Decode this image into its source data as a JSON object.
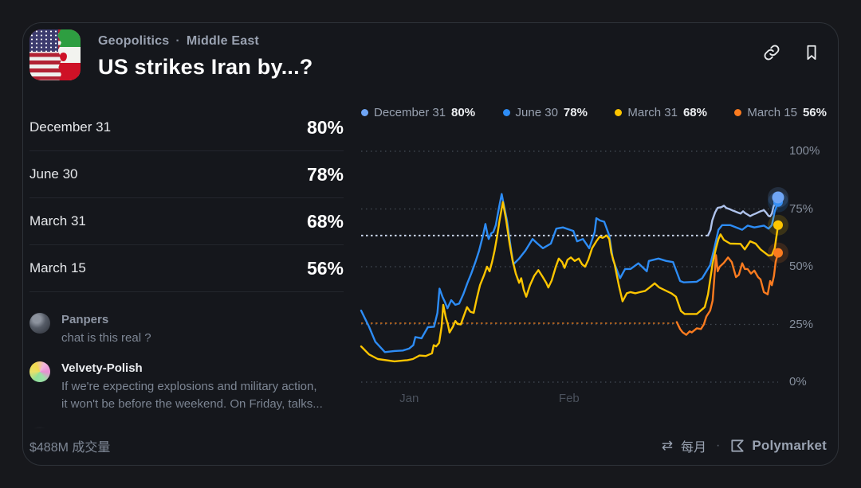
{
  "card": {
    "breadcrumb": {
      "category": "Geopolitics",
      "separator": "·",
      "region": "Middle East"
    },
    "title": "US strikes Iran by...?",
    "outcomes": [
      {
        "label": "December 31",
        "value": "80%",
        "color": "#6fa5f4"
      },
      {
        "label": "June 30",
        "value": "78%",
        "color": "#2d8cf5"
      },
      {
        "label": "March 31",
        "value": "68%",
        "color": "#fdc500"
      },
      {
        "label": "March 15",
        "value": "56%",
        "color": "#fb7b1f"
      }
    ],
    "comments": [
      {
        "name": "Panpers",
        "text": "chat is this real ?"
      },
      {
        "name": "Velvety-Polish",
        "text": "If we're expecting explosions and military action, it won't be before the weekend. On Friday, talks..."
      }
    ],
    "footer": {
      "volume": "$488M 成交量",
      "swap_glyph": "⇄",
      "interval": "每月",
      "separator": "·",
      "brand": "Polymarket"
    },
    "icons": {
      "link": "link-icon",
      "bookmark": "bookmark-icon",
      "swap": "swap-icon",
      "brand": "polymarket-logo"
    }
  },
  "chart_data": {
    "type": "line",
    "ylim": [
      0,
      100
    ],
    "grid": "dotted-horizontal",
    "legend_position": "top",
    "yticks": [
      {
        "label": "100%",
        "value": 100
      },
      {
        "label": "75%",
        "value": 75
      },
      {
        "label": "50%",
        "value": 50
      },
      {
        "label": "25%",
        "value": 25
      },
      {
        "label": "0%",
        "value": 0
      }
    ],
    "xticks": [
      {
        "label": "Jan",
        "pos": 11.5
      },
      {
        "label": "Feb",
        "pos": 49.7
      }
    ],
    "series": [
      {
        "name": "December 31",
        "current_pct": 80,
        "color": "#6fa5f4",
        "line_color": "#afc3ec",
        "pre_line": {
          "value": 63.5,
          "until": 83.2,
          "color": "#cbd7ef"
        },
        "points": [
          [
            83.2,
            63.5
          ],
          [
            83.8,
            66
          ],
          [
            84.2,
            70
          ],
          [
            84.9,
            73.5
          ],
          [
            85.5,
            75.5
          ],
          [
            86.4,
            75.8
          ],
          [
            87,
            76.4
          ],
          [
            87.6,
            75.4
          ],
          [
            88.3,
            75
          ],
          [
            89,
            74.4
          ],
          [
            89.6,
            74
          ],
          [
            90.4,
            73.4
          ],
          [
            91,
            73
          ],
          [
            91.6,
            74
          ],
          [
            92.1,
            73.2
          ],
          [
            92.7,
            72.6
          ],
          [
            93.3,
            71.9
          ],
          [
            93.9,
            72.5
          ],
          [
            94.6,
            73
          ],
          [
            95.2,
            73.5
          ],
          [
            95.8,
            74
          ],
          [
            96.6,
            74.5
          ],
          [
            97.1,
            73.5
          ],
          [
            97.7,
            72
          ],
          [
            98.1,
            71.8
          ],
          [
            98.5,
            73
          ],
          [
            98.9,
            76
          ],
          [
            100,
            80
          ]
        ]
      },
      {
        "name": "June 30",
        "current_pct": 78,
        "color": "#2d8cf5",
        "points": [
          [
            0,
            31
          ],
          [
            0.8,
            28
          ],
          [
            1.9,
            24
          ],
          [
            3.4,
            17.5
          ],
          [
            5.7,
            13
          ],
          [
            8,
            13.5
          ],
          [
            10,
            13.7
          ],
          [
            11.5,
            14.5
          ],
          [
            12.5,
            16
          ],
          [
            13,
            19.5
          ],
          [
            14.5,
            19
          ],
          [
            16,
            23.8
          ],
          [
            17.5,
            24
          ],
          [
            18.3,
            30
          ],
          [
            18.8,
            40.5
          ],
          [
            19.5,
            37
          ],
          [
            20.1,
            34.7
          ],
          [
            20.7,
            32
          ],
          [
            21.6,
            35.5
          ],
          [
            22.6,
            33.5
          ],
          [
            23.5,
            34
          ],
          [
            24.5,
            38
          ],
          [
            25.5,
            43
          ],
          [
            26.4,
            47
          ],
          [
            27.4,
            52
          ],
          [
            28.3,
            57
          ],
          [
            29.3,
            64
          ],
          [
            29.8,
            68.5
          ],
          [
            30.3,
            64
          ],
          [
            30.6,
            62
          ],
          [
            31.2,
            64.5
          ],
          [
            31.7,
            65
          ],
          [
            32.3,
            68
          ],
          [
            33,
            75
          ],
          [
            33.7,
            81.5
          ],
          [
            34.3,
            76
          ],
          [
            35,
            70
          ],
          [
            35.9,
            58
          ],
          [
            36.5,
            51
          ],
          [
            37.9,
            53.5
          ],
          [
            39.4,
            57
          ],
          [
            41.1,
            62
          ],
          [
            42.3,
            60
          ],
          [
            43.6,
            58
          ],
          [
            45.5,
            60
          ],
          [
            46.8,
            66.5
          ],
          [
            48.4,
            67
          ],
          [
            50.9,
            65.5
          ],
          [
            51.8,
            61
          ],
          [
            53.2,
            62
          ],
          [
            54.7,
            58
          ],
          [
            56,
            65
          ],
          [
            56.4,
            71
          ],
          [
            57.3,
            70
          ],
          [
            58.3,
            69.5
          ],
          [
            59.5,
            63.5
          ],
          [
            60.4,
            53
          ],
          [
            62.1,
            45
          ],
          [
            63.3,
            49
          ],
          [
            64.6,
            49
          ],
          [
            66.5,
            51.5
          ],
          [
            68.5,
            48
          ],
          [
            69,
            52.5
          ],
          [
            71.3,
            53.5
          ],
          [
            73.2,
            52.5
          ],
          [
            74.8,
            52
          ],
          [
            76.5,
            43.8
          ],
          [
            77.4,
            43.2
          ],
          [
            80.5,
            43.5
          ],
          [
            81.8,
            45
          ],
          [
            83.7,
            50.7
          ],
          [
            84.7,
            58
          ],
          [
            85.7,
            66
          ],
          [
            86.6,
            68
          ],
          [
            88.5,
            68
          ],
          [
            91.4,
            66
          ],
          [
            92.7,
            67.8
          ],
          [
            94.3,
            67
          ],
          [
            96.6,
            67.8
          ],
          [
            97.7,
            66.5
          ],
          [
            98.5,
            68
          ],
          [
            99.2,
            74
          ],
          [
            100,
            78
          ]
        ]
      },
      {
        "name": "March 31",
        "current_pct": 68,
        "color": "#fdc500",
        "points": [
          [
            0,
            15.5
          ],
          [
            1.9,
            12
          ],
          [
            4,
            10
          ],
          [
            8,
            9
          ],
          [
            11.1,
            9.5
          ],
          [
            12.4,
            10
          ],
          [
            14,
            11.5
          ],
          [
            15.5,
            11.3
          ],
          [
            17,
            12.5
          ],
          [
            17.4,
            16
          ],
          [
            18,
            15.5
          ],
          [
            18.7,
            17
          ],
          [
            19.3,
            24
          ],
          [
            19.7,
            33.5
          ],
          [
            20.3,
            28
          ],
          [
            20.8,
            25
          ],
          [
            21.2,
            21.5
          ],
          [
            22,
            24
          ],
          [
            22.6,
            26.5
          ],
          [
            23.1,
            25.2
          ],
          [
            23.9,
            25
          ],
          [
            24.5,
            28
          ],
          [
            25.4,
            32.5
          ],
          [
            26.2,
            30.5
          ],
          [
            27,
            30
          ],
          [
            27.7,
            36
          ],
          [
            28.5,
            42
          ],
          [
            29.4,
            46
          ],
          [
            30.2,
            50
          ],
          [
            30.8,
            48
          ],
          [
            31.4,
            52
          ],
          [
            32,
            57
          ],
          [
            32.6,
            63
          ],
          [
            33.2,
            70
          ],
          [
            34,
            78
          ],
          [
            34.8,
            70
          ],
          [
            35.6,
            60
          ],
          [
            36.3,
            53
          ],
          [
            37.1,
            47
          ],
          [
            37.9,
            43
          ],
          [
            38.4,
            45
          ],
          [
            39,
            40
          ],
          [
            39.6,
            37
          ],
          [
            40.5,
            42
          ],
          [
            41.5,
            46
          ],
          [
            42.5,
            48.5
          ],
          [
            43.4,
            46
          ],
          [
            44.4,
            43
          ],
          [
            44.9,
            41
          ],
          [
            45.7,
            44
          ],
          [
            46.7,
            50
          ],
          [
            47.4,
            53.5
          ],
          [
            48.2,
            52
          ],
          [
            48.8,
            49.5
          ],
          [
            49.5,
            53
          ],
          [
            50.3,
            54
          ],
          [
            51.2,
            52.5
          ],
          [
            52.2,
            53.5
          ],
          [
            53,
            51
          ],
          [
            53.7,
            50
          ],
          [
            54.5,
            53
          ],
          [
            55.4,
            58
          ],
          [
            56.4,
            61
          ],
          [
            57.2,
            63
          ],
          [
            57.9,
            62.5
          ],
          [
            58.9,
            63.5
          ],
          [
            59.5,
            62
          ],
          [
            60,
            56
          ],
          [
            60.8,
            51
          ],
          [
            61.8,
            42
          ],
          [
            62.7,
            35
          ],
          [
            63.7,
            38.5
          ],
          [
            64.6,
            39
          ],
          [
            65.8,
            38.5
          ],
          [
            66.9,
            39
          ],
          [
            68.1,
            39.5
          ],
          [
            69.2,
            41
          ],
          [
            70.4,
            42.8
          ],
          [
            71.5,
            41
          ],
          [
            73,
            39.7
          ],
          [
            74.4,
            38.5
          ],
          [
            75.5,
            37
          ],
          [
            76.7,
            30.8
          ],
          [
            77.6,
            29.5
          ],
          [
            80.5,
            29.5
          ],
          [
            82.4,
            32.5
          ],
          [
            83.2,
            38
          ],
          [
            84.3,
            51.4
          ],
          [
            85.1,
            58
          ],
          [
            85.7,
            62
          ],
          [
            86.2,
            64
          ],
          [
            87,
            61.6
          ],
          [
            88.5,
            60
          ],
          [
            91,
            59.9
          ],
          [
            92,
            57.5
          ],
          [
            93.3,
            61
          ],
          [
            94.6,
            60
          ],
          [
            95.8,
            57.5
          ],
          [
            97.7,
            54.8
          ],
          [
            98.5,
            55
          ],
          [
            99.2,
            58
          ],
          [
            100,
            68
          ]
        ]
      },
      {
        "name": "March 15",
        "current_pct": 56,
        "color": "#fb7b1f",
        "pre_line": {
          "value": 25.5,
          "until": 75.7,
          "color": "#a65e20"
        },
        "points": [
          [
            75.7,
            26
          ],
          [
            76.5,
            23
          ],
          [
            77.1,
            21.6
          ],
          [
            78,
            20.5
          ],
          [
            78.8,
            22
          ],
          [
            79.3,
            21.5
          ],
          [
            80.5,
            23.3
          ],
          [
            81.5,
            23
          ],
          [
            82.2,
            25
          ],
          [
            82.8,
            28.4
          ],
          [
            83.7,
            31
          ],
          [
            84.3,
            35.3
          ],
          [
            84.7,
            45
          ],
          [
            85.1,
            55
          ],
          [
            85.5,
            48
          ],
          [
            86,
            50
          ],
          [
            87,
            51.7
          ],
          [
            88,
            54
          ],
          [
            88.9,
            52
          ],
          [
            89.9,
            45.5
          ],
          [
            90.6,
            46.5
          ],
          [
            91.4,
            51.5
          ],
          [
            92,
            49
          ],
          [
            92.7,
            49
          ],
          [
            93.5,
            47
          ],
          [
            94.3,
            48.3
          ],
          [
            95.2,
            45.5
          ],
          [
            95.8,
            44.5
          ],
          [
            96.6,
            39
          ],
          [
            97.1,
            38.5
          ],
          [
            97.5,
            38
          ],
          [
            98.1,
            43.8
          ],
          [
            98.5,
            42
          ],
          [
            99,
            46
          ],
          [
            99.4,
            52
          ],
          [
            100,
            56
          ]
        ]
      }
    ]
  }
}
